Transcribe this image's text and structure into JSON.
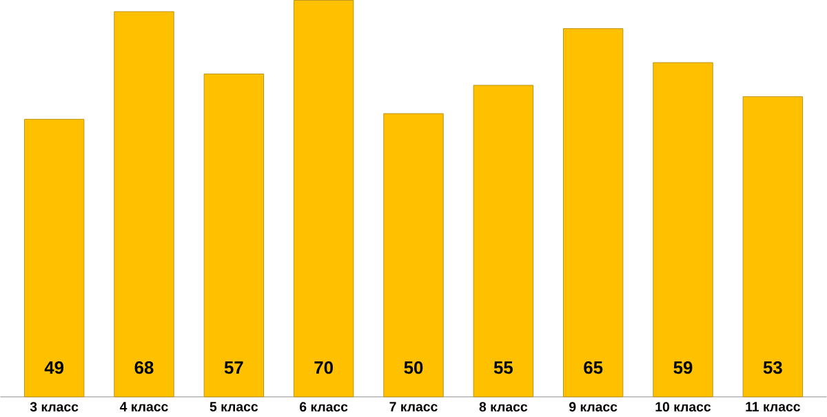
{
  "chart_data": {
    "type": "bar",
    "categories": [
      "3 класс",
      "4 класс",
      "5 класс",
      "6 класс",
      "7 класс",
      "8 класс",
      "9 класс",
      "10 класс",
      "11 класс"
    ],
    "values": [
      49,
      68,
      57,
      70,
      50,
      55,
      65,
      59,
      53
    ],
    "color": "#ffc000",
    "data_labels": true
  }
}
